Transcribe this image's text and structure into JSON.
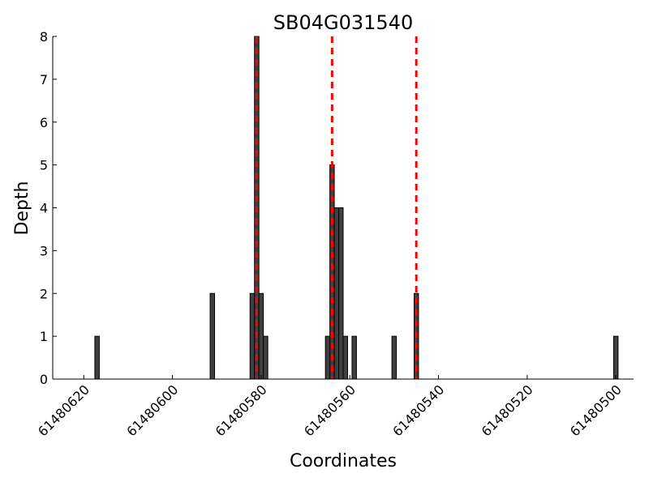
{
  "chart_data": {
    "type": "bar",
    "title": "SB04G031540",
    "xlabel": "Coordinates",
    "ylabel": "Depth",
    "x_reversed": true,
    "xlim": [
      61480627,
      61480496
    ],
    "ylim": [
      0,
      8
    ],
    "x_ticks": [
      61480620,
      61480600,
      61480580,
      61480560,
      61480540,
      61480520,
      61480500
    ],
    "y_ticks": [
      0,
      1,
      2,
      3,
      4,
      5,
      6,
      7,
      8
    ],
    "bars": [
      {
        "x": 61480617,
        "y": 1
      },
      {
        "x": 61480591,
        "y": 2
      },
      {
        "x": 61480582,
        "y": 2
      },
      {
        "x": 61480581,
        "y": 8
      },
      {
        "x": 61480580,
        "y": 2
      },
      {
        "x": 61480579,
        "y": 1
      },
      {
        "x": 61480565,
        "y": 1
      },
      {
        "x": 61480564,
        "y": 5
      },
      {
        "x": 61480563,
        "y": 4
      },
      {
        "x": 61480562,
        "y": 4
      },
      {
        "x": 61480561,
        "y": 1
      },
      {
        "x": 61480559,
        "y": 1
      },
      {
        "x": 61480550,
        "y": 1
      },
      {
        "x": 61480545,
        "y": 2
      },
      {
        "x": 61480500,
        "y": 1
      }
    ],
    "bar_width": 1,
    "bar_color": "#404040",
    "reference_lines": [
      {
        "x": 61480581,
        "color": "#ff0000",
        "style": "dashed"
      },
      {
        "x": 61480564,
        "color": "#ff0000",
        "style": "dashed"
      },
      {
        "x": 61480545,
        "color": "#ff0000",
        "style": "dashed"
      }
    ],
    "grid": false,
    "legend": "none"
  }
}
